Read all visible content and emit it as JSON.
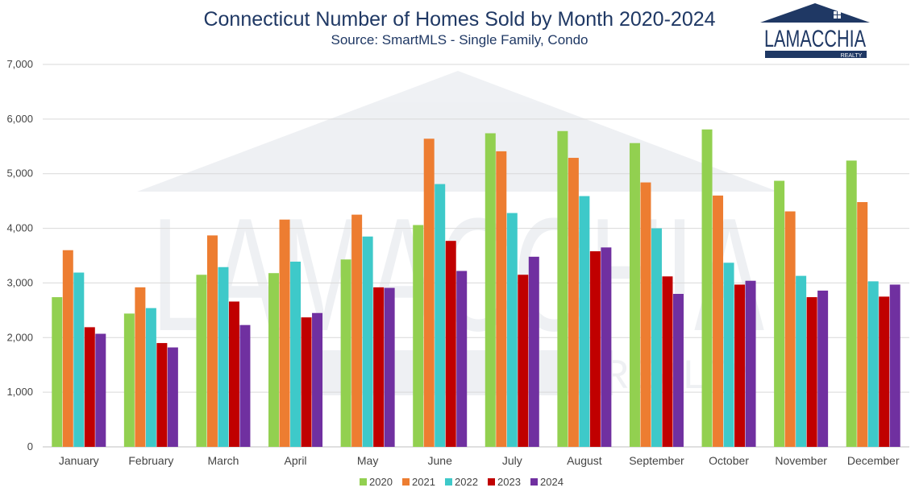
{
  "chart_data": {
    "type": "bar",
    "title": "Connecticut Number of Homes Sold by Month 2020-2024",
    "subtitle": "Source: SmartMLS - Single Family, Condo",
    "xlabel": "",
    "ylabel": "",
    "ylim": [
      0,
      7000
    ],
    "yticks": [
      "0",
      "1,000",
      "2,000",
      "3,000",
      "4,000",
      "5,000",
      "6,000",
      "7,000"
    ],
    "ytick_values": [
      0,
      1000,
      2000,
      3000,
      4000,
      5000,
      6000,
      7000
    ],
    "grid": true,
    "legend_position": "bottom",
    "categories": [
      "January",
      "February",
      "March",
      "April",
      "May",
      "June",
      "July",
      "August",
      "September",
      "October",
      "November",
      "December"
    ],
    "series": [
      {
        "name": "2020",
        "color": "#92d050",
        "values": [
          2740,
          2440,
          3150,
          3180,
          3430,
          4060,
          5740,
          5780,
          5560,
          5810,
          4870,
          5240
        ]
      },
      {
        "name": "2021",
        "color": "#ed7d31",
        "values": [
          3600,
          2920,
          3870,
          4160,
          4250,
          5640,
          5410,
          5290,
          4840,
          4600,
          4310,
          4480
        ]
      },
      {
        "name": "2022",
        "color": "#3ec9c9",
        "values": [
          3190,
          2540,
          3290,
          3390,
          3850,
          4810,
          4280,
          4590,
          4000,
          3370,
          3130,
          3030
        ]
      },
      {
        "name": "2023",
        "color": "#c00000",
        "values": [
          2190,
          1900,
          2660,
          2370,
          2920,
          3770,
          3150,
          3580,
          3120,
          2970,
          2740,
          2750
        ]
      },
      {
        "name": "2024",
        "color": "#7030a0",
        "values": [
          2070,
          1820,
          2230,
          2450,
          2910,
          3220,
          3480,
          3650,
          2800,
          3040,
          2860,
          2970
        ]
      }
    ]
  },
  "logo": {
    "name": "LAMACCHIA",
    "sub": "REALTY",
    "color": "#1f3864"
  }
}
